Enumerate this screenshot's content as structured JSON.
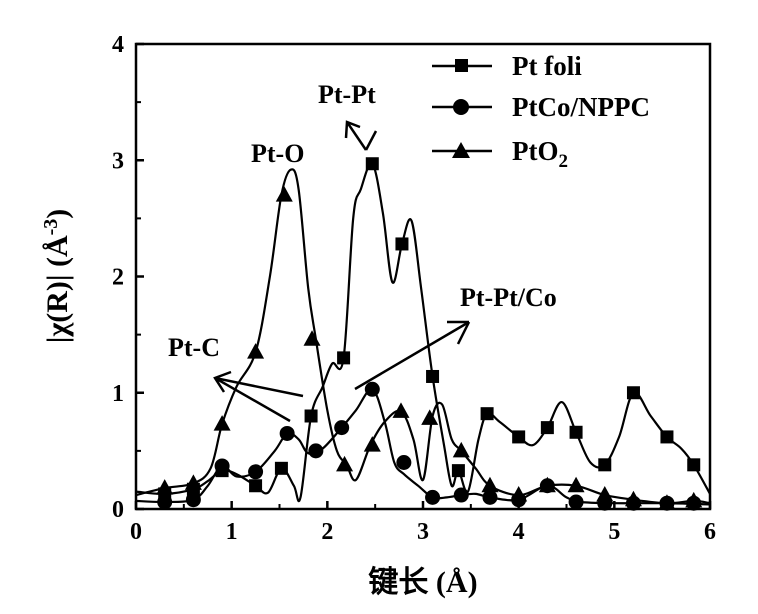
{
  "chart_data": {
    "type": "line",
    "xlabel": "键长 (Å)",
    "ylabel_main": "|χ(R)| (Å",
    "ylabel_sup": "-3",
    "ylabel_close": ")",
    "xlim": [
      0,
      6
    ],
    "ylim": [
      0,
      4
    ],
    "xticks": [
      "0",
      "1",
      "2",
      "3",
      "4",
      "5",
      "6"
    ],
    "yticks": [
      "0",
      "1",
      "2",
      "3",
      "4"
    ],
    "grid": false,
    "legend_position": "top-right",
    "colors": {
      "line": "#000000",
      "background": "#ffffff"
    },
    "series": [
      {
        "name": "Pt foli",
        "marker": "square",
        "points": [
          [
            0,
            0.15
          ],
          [
            0.3,
            0.13
          ],
          [
            0.6,
            0.17
          ],
          [
            0.75,
            0.24
          ],
          [
            0.9,
            0.33
          ],
          [
            1.05,
            0.3
          ],
          [
            1.25,
            0.2
          ],
          [
            1.38,
            0.14
          ],
          [
            1.52,
            0.35
          ],
          [
            1.65,
            0.2
          ],
          [
            1.72,
            0.1
          ],
          [
            1.83,
            0.8
          ],
          [
            1.95,
            1.05
          ],
          [
            2.05,
            1.25
          ],
          [
            2.17,
            1.3
          ],
          [
            2.27,
            2.5
          ],
          [
            2.35,
            2.75
          ],
          [
            2.47,
            2.97
          ],
          [
            2.58,
            2.55
          ],
          [
            2.68,
            1.95
          ],
          [
            2.78,
            2.28
          ],
          [
            2.88,
            2.48
          ],
          [
            2.98,
            1.9
          ],
          [
            3.1,
            1.14
          ],
          [
            3.22,
            0.55
          ],
          [
            3.3,
            0.2
          ],
          [
            3.37,
            0.33
          ],
          [
            3.47,
            0.15
          ],
          [
            3.58,
            0.6
          ],
          [
            3.67,
            0.82
          ],
          [
            3.8,
            0.75
          ],
          [
            4.0,
            0.62
          ],
          [
            4.15,
            0.55
          ],
          [
            4.3,
            0.7
          ],
          [
            4.45,
            0.92
          ],
          [
            4.6,
            0.66
          ],
          [
            4.75,
            0.4
          ],
          [
            4.9,
            0.38
          ],
          [
            5.05,
            0.62
          ],
          [
            5.2,
            1.0
          ],
          [
            5.38,
            0.8
          ],
          [
            5.55,
            0.62
          ],
          [
            5.7,
            0.52
          ],
          [
            5.83,
            0.38
          ],
          [
            6,
            0.13
          ]
        ],
        "markers": [
          [
            0.3,
            0.13
          ],
          [
            0.6,
            0.17
          ],
          [
            0.9,
            0.33
          ],
          [
            1.25,
            0.2
          ],
          [
            1.52,
            0.35
          ],
          [
            1.83,
            0.8
          ],
          [
            2.17,
            1.3
          ],
          [
            2.47,
            2.97
          ],
          [
            2.78,
            2.28
          ],
          [
            3.1,
            1.14
          ],
          [
            3.37,
            0.33
          ],
          [
            3.67,
            0.82
          ],
          [
            4.0,
            0.62
          ],
          [
            4.3,
            0.7
          ],
          [
            4.6,
            0.66
          ],
          [
            4.9,
            0.38
          ],
          [
            5.2,
            1.0
          ],
          [
            5.55,
            0.62
          ],
          [
            5.83,
            0.38
          ]
        ]
      },
      {
        "name": "PtCo/NPPC",
        "marker": "circle",
        "points": [
          [
            0,
            0.07
          ],
          [
            0.3,
            0.06
          ],
          [
            0.6,
            0.08
          ],
          [
            0.75,
            0.2
          ],
          [
            0.9,
            0.37
          ],
          [
            1.05,
            0.28
          ],
          [
            1.25,
            0.32
          ],
          [
            1.45,
            0.5
          ],
          [
            1.58,
            0.65
          ],
          [
            1.7,
            0.6
          ],
          [
            1.8,
            0.48
          ],
          [
            1.95,
            0.52
          ],
          [
            2.15,
            0.7
          ],
          [
            2.3,
            0.85
          ],
          [
            2.47,
            1.03
          ],
          [
            2.6,
            0.75
          ],
          [
            2.7,
            0.4
          ],
          [
            2.8,
            0.3
          ],
          [
            2.95,
            0.2
          ],
          [
            3.1,
            0.1
          ],
          [
            3.25,
            0.1
          ],
          [
            3.4,
            0.12
          ],
          [
            3.55,
            0.13
          ],
          [
            3.7,
            0.1
          ],
          [
            4.0,
            0.08
          ],
          [
            4.3,
            0.2
          ],
          [
            4.5,
            0.1
          ],
          [
            4.65,
            0.06
          ],
          [
            5.0,
            0.05
          ],
          [
            5.5,
            0.05
          ],
          [
            6,
            0.04
          ]
        ],
        "markers": [
          [
            0.3,
            0.06
          ],
          [
            0.6,
            0.08
          ],
          [
            0.9,
            0.37
          ],
          [
            1.25,
            0.32
          ],
          [
            1.58,
            0.65
          ],
          [
            1.88,
            0.5
          ],
          [
            2.15,
            0.7
          ],
          [
            2.47,
            1.03
          ],
          [
            2.8,
            0.4
          ],
          [
            3.1,
            0.1
          ],
          [
            3.4,
            0.12
          ],
          [
            3.7,
            0.1
          ],
          [
            4.0,
            0.08
          ],
          [
            4.3,
            0.2
          ],
          [
            4.6,
            0.06
          ],
          [
            4.9,
            0.05
          ],
          [
            5.2,
            0.05
          ],
          [
            5.55,
            0.05
          ],
          [
            5.83,
            0.05
          ]
        ]
      },
      {
        "name": "PtO",
        "name_sub": "2",
        "marker": "triangle",
        "points": [
          [
            0,
            0.12
          ],
          [
            0.3,
            0.18
          ],
          [
            0.6,
            0.22
          ],
          [
            0.78,
            0.35
          ],
          [
            0.9,
            0.73
          ],
          [
            1.05,
            1.05
          ],
          [
            1.25,
            1.35
          ],
          [
            1.4,
            2.0
          ],
          [
            1.52,
            2.7
          ],
          [
            1.62,
            2.92
          ],
          [
            1.7,
            2.75
          ],
          [
            1.8,
            1.9
          ],
          [
            1.88,
            1.46
          ],
          [
            2.0,
            0.85
          ],
          [
            2.1,
            0.5
          ],
          [
            2.2,
            0.38
          ],
          [
            2.3,
            0.25
          ],
          [
            2.45,
            0.55
          ],
          [
            2.6,
            0.75
          ],
          [
            2.77,
            0.84
          ],
          [
            2.9,
            0.6
          ],
          [
            3.0,
            0.25
          ],
          [
            3.1,
            0.8
          ],
          [
            3.2,
            0.9
          ],
          [
            3.3,
            0.6
          ],
          [
            3.4,
            0.5
          ],
          [
            3.55,
            0.35
          ],
          [
            3.7,
            0.2
          ],
          [
            4.0,
            0.12
          ],
          [
            4.3,
            0.2
          ],
          [
            4.6,
            0.2
          ],
          [
            4.9,
            0.12
          ],
          [
            5.2,
            0.08
          ],
          [
            5.55,
            0.05
          ],
          [
            5.83,
            0.07
          ],
          [
            6,
            0.05
          ]
        ],
        "markers": [
          [
            0.3,
            0.18
          ],
          [
            0.6,
            0.22
          ],
          [
            0.9,
            0.73
          ],
          [
            1.25,
            1.35
          ],
          [
            1.55,
            2.7
          ],
          [
            1.84,
            1.46
          ],
          [
            2.18,
            0.38
          ],
          [
            2.47,
            0.55
          ],
          [
            2.77,
            0.84
          ],
          [
            3.07,
            0.78
          ],
          [
            3.4,
            0.5
          ],
          [
            3.7,
            0.2
          ],
          [
            4.0,
            0.12
          ],
          [
            4.3,
            0.2
          ],
          [
            4.6,
            0.2
          ],
          [
            4.9,
            0.12
          ],
          [
            5.2,
            0.08
          ],
          [
            5.55,
            0.05
          ],
          [
            5.83,
            0.07
          ]
        ]
      }
    ],
    "annotations": [
      {
        "id": "pt-o",
        "text": "Pt-O"
      },
      {
        "id": "pt-pt",
        "text": "Pt-Pt"
      },
      {
        "id": "pt-c",
        "text": "Pt-C"
      },
      {
        "id": "pt-pt-co",
        "text": "Pt-Pt/Co"
      }
    ]
  }
}
